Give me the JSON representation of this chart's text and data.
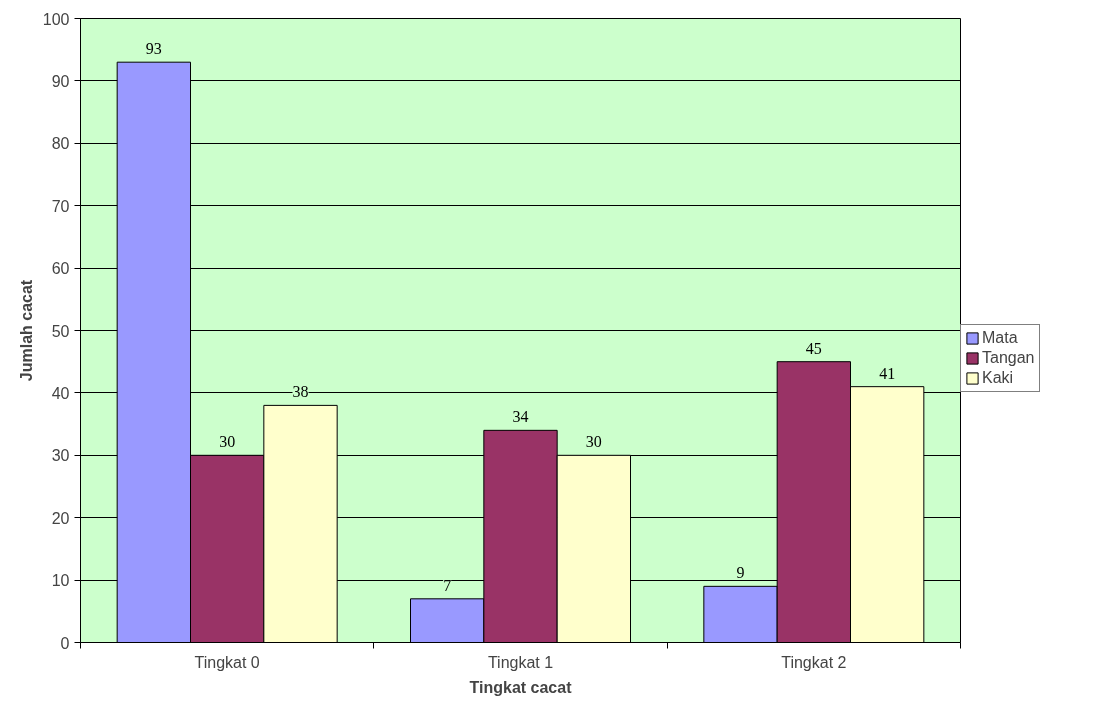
{
  "chart_data": {
    "type": "bar",
    "xlabel": "Tingkat cacat",
    "ylabel": "Jumlah cacat",
    "categories": [
      "Tingkat 0",
      "Tingkat 1",
      "Tingkat 2"
    ],
    "series": [
      {
        "name": "Mata",
        "color": "#9999ff",
        "values": [
          93,
          7,
          9
        ]
      },
      {
        "name": "Tangan",
        "color": "#993366",
        "values": [
          30,
          34,
          45
        ]
      },
      {
        "name": "Kaki",
        "color": "#ffffcc",
        "values": [
          38,
          30,
          41
        ]
      }
    ],
    "ylim": [
      0,
      100
    ],
    "yticks": [
      0,
      10,
      20,
      30,
      40,
      50,
      60,
      70,
      80,
      90,
      100
    ],
    "grid": "y",
    "legend": "right",
    "data_labels": true
  }
}
